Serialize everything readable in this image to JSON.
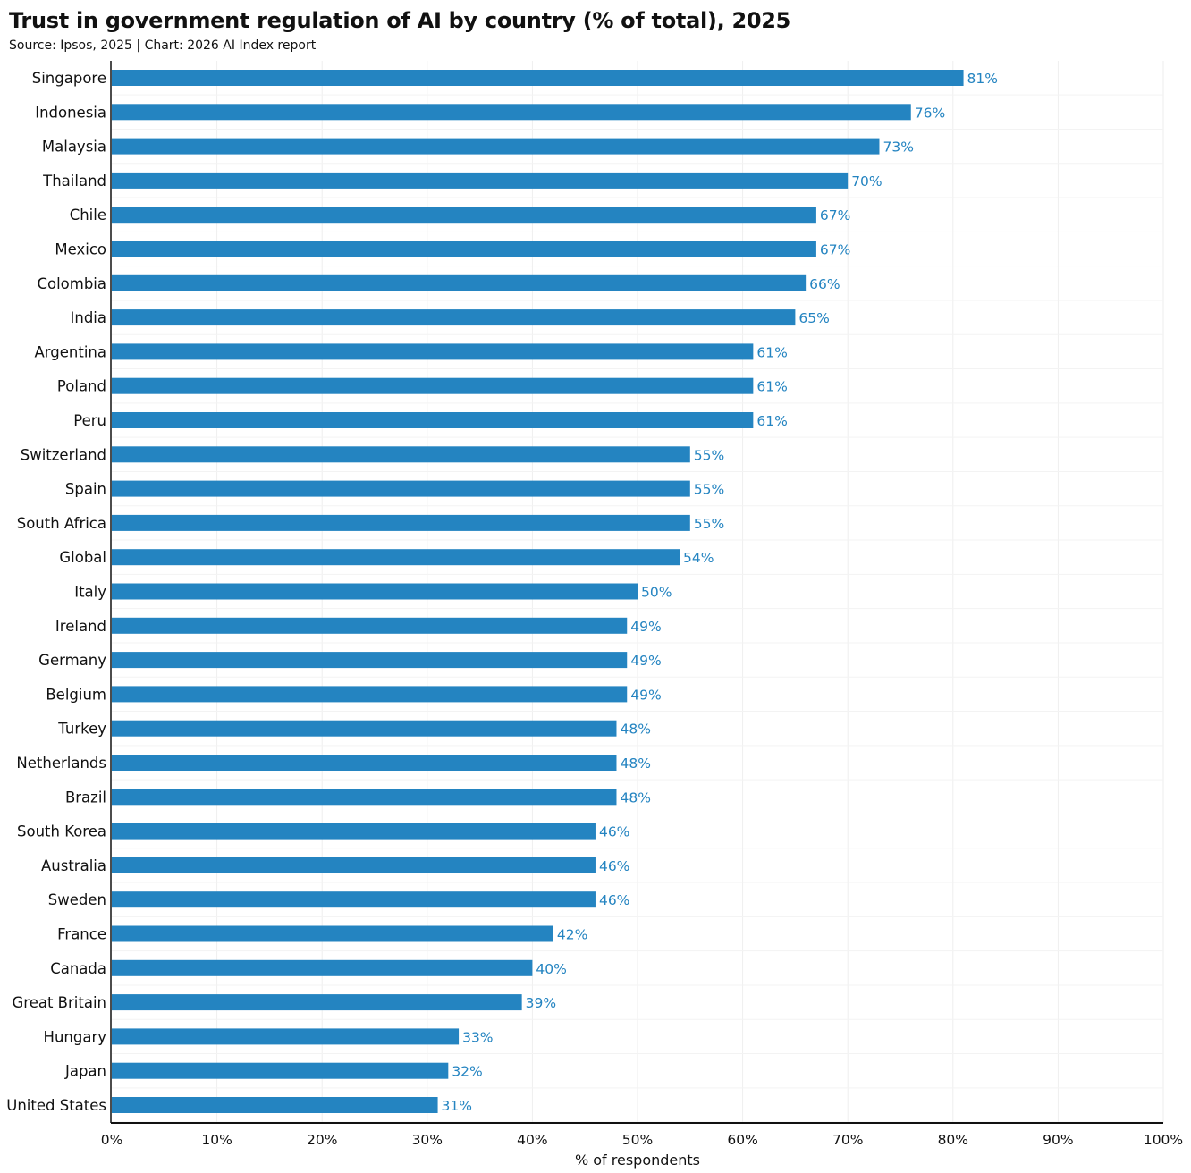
{
  "chart_data": {
    "type": "bar",
    "orientation": "horizontal",
    "title": "Trust in government regulation of AI by country (% of total), 2025",
    "subtitle": "Source: Ipsos, 2025 | Chart: 2026 AI Index report",
    "xlabel": "% of respondents",
    "ylabel": "",
    "xlim": [
      0,
      100
    ],
    "xticks": [
      "0%",
      "10%",
      "20%",
      "30%",
      "40%",
      "50%",
      "60%",
      "70%",
      "80%",
      "90%",
      "100%"
    ],
    "grid": true,
    "bar_color": "#2484c1",
    "label_color": "#2484c1",
    "categories": [
      "Singapore",
      "Indonesia",
      "Malaysia",
      "Thailand",
      "Chile",
      "Mexico",
      "Colombia",
      "India",
      "Argentina",
      "Poland",
      "Peru",
      "Switzerland",
      "Spain",
      "South Africa",
      "Global",
      "Italy",
      "Ireland",
      "Germany",
      "Belgium",
      "Turkey",
      "Netherlands",
      "Brazil",
      "South Korea",
      "Australia",
      "Sweden",
      "France",
      "Canada",
      "Great Britain",
      "Hungary",
      "Japan",
      "United States"
    ],
    "values": [
      81,
      76,
      73,
      70,
      67,
      67,
      66,
      65,
      61,
      61,
      61,
      55,
      55,
      55,
      54,
      50,
      49,
      49,
      49,
      48,
      48,
      48,
      46,
      46,
      46,
      42,
      40,
      39,
      33,
      32,
      31
    ],
    "data_labels": [
      "81%",
      "76%",
      "73%",
      "70%",
      "67%",
      "67%",
      "66%",
      "65%",
      "61%",
      "61%",
      "61%",
      "55%",
      "55%",
      "55%",
      "54%",
      "50%",
      "49%",
      "49%",
      "49%",
      "48%",
      "48%",
      "48%",
      "46%",
      "46%",
      "46%",
      "42%",
      "40%",
      "39%",
      "33%",
      "32%",
      "31%"
    ]
  }
}
